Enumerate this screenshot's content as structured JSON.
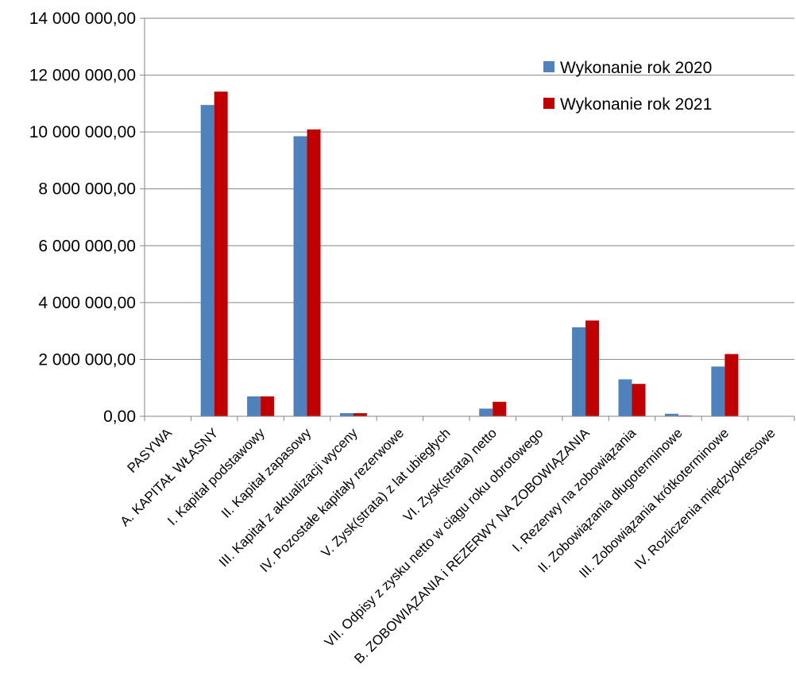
{
  "chart_data": {
    "type": "bar",
    "categories": [
      "PASYWA",
      "A. KAPITAŁ WŁASNY",
      "I. Kapitał podstawowy",
      "II. Kapitał zapasowy",
      "III. Kapitał z aktualizacji wyceny",
      "IV. Pozostałe kapitały rezerwowe",
      "V. Zysk(strata) z lat ubiegłych",
      "VI. Zysk(strata) netto",
      "VII. Odpisy z zysku netto w ciągu roku obrotowego",
      "B. ZOBOWIĄZANIA i REZERWY NA ZOBOWIĄZANIA",
      "I. Rezerwy na zobowiązania",
      "II. Zobowiązania długoterminowe",
      "III. Zobowiązania krótkoterminowe",
      "IV. Rozliczenia międzyokresowe"
    ],
    "series": [
      {
        "name": "Wykonanie rok 2020",
        "color": "#4f81bd",
        "values": [
          0,
          10950000,
          700000,
          9850000,
          110000,
          0,
          0,
          270000,
          0,
          3130000,
          1300000,
          90000,
          1750000,
          0
        ]
      },
      {
        "name": "Wykonanie rok 2021",
        "color": "#c00000",
        "values": [
          0,
          11420000,
          700000,
          10090000,
          110000,
          0,
          0,
          510000,
          0,
          3370000,
          1140000,
          25000,
          2190000,
          0
        ]
      }
    ],
    "yticks": [
      "0,00",
      "2 000 000,00",
      "4 000 000,00",
      "6 000 000,00",
      "8 000 000,00",
      "10 000 000,00",
      "12 000 000,00",
      "14 000 000,00"
    ],
    "ylim": [
      0,
      14000000
    ],
    "ystep": 2000000,
    "grid": true,
    "legend_position": "top-right",
    "title": "",
    "xlabel": "",
    "ylabel": ""
  }
}
